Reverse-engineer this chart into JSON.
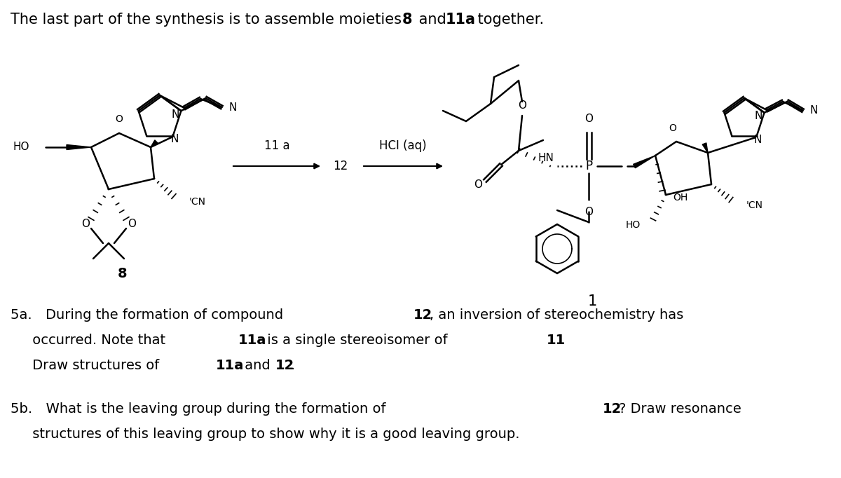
{
  "figsize": [
    12.0,
    6.82
  ],
  "dpi": 100,
  "bg": "white",
  "title_normal": "The last part of the synthesis is to assemble moieties ",
  "title_8": "8",
  "title_mid": " and ",
  "title_11a": "11a",
  "title_end": " together.",
  "lbl_8": "8",
  "lbl_1": "1",
  "arrow1_label_top": "11 a",
  "arrow1_label_bot": "12",
  "arrow2_label": "HCI (aq)",
  "q5a_pre": "5a. During the formation of compound ",
  "q5a_12": "12",
  "q5a_post": ", an inversion of stereochemistry has",
  "q5a2_pre": "     occurred. Note that ",
  "q5a2_11a": "11a",
  "q5a2_mid": " is a single stereoisomer of ",
  "q5a2_11": "11",
  "q5a2_end": ".",
  "q5a3_pre": "     Draw structures of ",
  "q5a3_11a": "11a",
  "q5a3_mid": " and ",
  "q5a3_12": "12",
  "q5a3_end": ".",
  "q5b_pre": "5b. What is the leaving group during the formation of ",
  "q5b_12": "12",
  "q5b_post": "? Draw resonance",
  "q5b2": "     structures of this leaving group to show why it is a good leaving group.",
  "fs_title": 15,
  "fs_q": 14,
  "fs_mol": 10,
  "fs_lbl": 13
}
